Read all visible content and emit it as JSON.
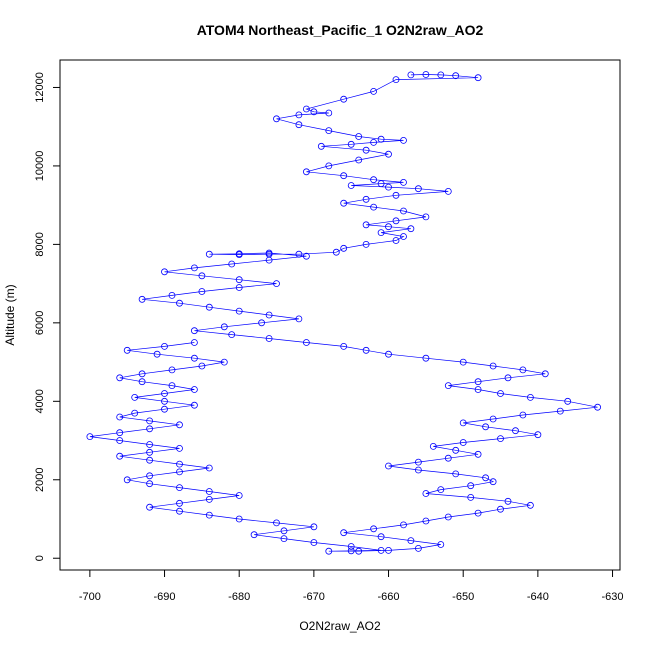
{
  "chart_data": {
    "type": "line",
    "title": "ATOM4 Northeast_Pacific_1 O2N2raw_AO2",
    "xlabel": "O2N2raw_AO2",
    "ylabel": "Altitude (m)",
    "xlim": [
      -704,
      -629
    ],
    "ylim": [
      -300,
      12700
    ],
    "x_ticks": [
      -700,
      -690,
      -680,
      -670,
      -660,
      -650,
      -640,
      -630
    ],
    "y_ticks": [
      0,
      2000,
      4000,
      6000,
      8000,
      10000,
      12000
    ],
    "grid": false,
    "series": [
      {
        "color": "#0000ff",
        "marker": "open-circle",
        "x": [
          -657,
          -655,
          -653,
          -651,
          -648,
          -659,
          -662,
          -666,
          -671,
          -670,
          -668,
          -672,
          -675,
          -672,
          -668,
          -664,
          -661,
          -658,
          -662,
          -665,
          -669,
          -663,
          -660,
          -664,
          -668,
          -671,
          -666,
          -662,
          -658,
          -661,
          -665,
          -660,
          -656,
          -652,
          -659,
          -663,
          -666,
          -662,
          -658,
          -655,
          -659,
          -663,
          -660,
          -657,
          -661,
          -658,
          -659,
          -663,
          -666,
          -667,
          -672,
          -676,
          -680,
          -684,
          -680,
          -676,
          -671,
          -676,
          -681,
          -686,
          -690,
          -685,
          -680,
          -675,
          -680,
          -685,
          -689,
          -693,
          -688,
          -684,
          -680,
          -676,
          -672,
          -677,
          -682,
          -686,
          -681,
          -676,
          -671,
          -666,
          -663,
          -660,
          -655,
          -650,
          -646,
          -642,
          -639,
          -644,
          -648,
          -652,
          -648,
          -645,
          -641,
          -636,
          -632,
          -637,
          -642,
          -646,
          -650,
          -647,
          -643,
          -640,
          -645,
          -650,
          -654,
          -651,
          -648,
          -652,
          -656,
          -660,
          -656,
          -651,
          -647,
          -646,
          -649,
          -653,
          -655,
          -649,
          -644,
          -641,
          -645,
          -648,
          -652,
          -655,
          -658,
          -662,
          -666,
          -661,
          -657,
          -653,
          -656,
          -660,
          -664,
          -668,
          -665,
          -661,
          -665,
          -670,
          -674,
          -678,
          -674,
          -670,
          -675,
          -680,
          -684,
          -688,
          -692,
          -688,
          -684,
          -680,
          -684,
          -688,
          -692,
          -695,
          -692,
          -688,
          -684,
          -688,
          -692,
          -696,
          -692,
          -688,
          -692,
          -696,
          -700,
          -696,
          -692,
          -688,
          -692,
          -696,
          -694,
          -690,
          -686,
          -690,
          -694,
          -690,
          -686,
          -689,
          -693,
          -696,
          -693,
          -689,
          -685,
          -682,
          -686,
          -691,
          -695,
          -690,
          -686
        ],
        "y": [
          12320,
          12330,
          12320,
          12300,
          12250,
          12200,
          11900,
          11700,
          11450,
          11380,
          11350,
          11300,
          11200,
          11050,
          10900,
          10750,
          10680,
          10650,
          10600,
          10550,
          10500,
          10400,
          10300,
          10150,
          10000,
          9850,
          9750,
          9650,
          9580,
          9550,
          9500,
          9460,
          9420,
          9350,
          9250,
          9150,
          9050,
          8950,
          8850,
          8700,
          8600,
          8500,
          8450,
          8400,
          8300,
          8200,
          8100,
          8000,
          7900,
          7800,
          7750,
          7750,
          7740,
          7750,
          7760,
          7780,
          7700,
          7600,
          7500,
          7400,
          7300,
          7200,
          7100,
          7000,
          6900,
          6800,
          6700,
          6600,
          6500,
          6400,
          6300,
          6200,
          6100,
          6000,
          5900,
          5800,
          5700,
          5600,
          5500,
          5400,
          5300,
          5200,
          5100,
          5000,
          4900,
          4800,
          4700,
          4600,
          4500,
          4400,
          4300,
          4200,
          4100,
          4000,
          3850,
          3750,
          3650,
          3550,
          3450,
          3350,
          3250,
          3150,
          3050,
          2950,
          2850,
          2750,
          2650,
          2550,
          2450,
          2350,
          2250,
          2150,
          2050,
          1950,
          1850,
          1750,
          1650,
          1550,
          1450,
          1350,
          1250,
          1150,
          1050,
          950,
          850,
          750,
          650,
          550,
          450,
          350,
          250,
          200,
          180,
          180,
          190,
          200,
          300,
          400,
          500,
          600,
          700,
          800,
          900,
          1000,
          1100,
          1200,
          1300,
          1400,
          1500,
          1600,
          1700,
          1800,
          1900,
          2000,
          2100,
          2200,
          2300,
          2400,
          2500,
          2600,
          2700,
          2800,
          2900,
          3000,
          3100,
          3200,
          3300,
          3400,
          3500,
          3600,
          3700,
          3800,
          3900,
          4000,
          4100,
          4200,
          4300,
          4400,
          4500,
          4600,
          4700,
          4800,
          4900,
          5000,
          5100,
          5200,
          5300,
          5400,
          5500
        ]
      }
    ]
  }
}
